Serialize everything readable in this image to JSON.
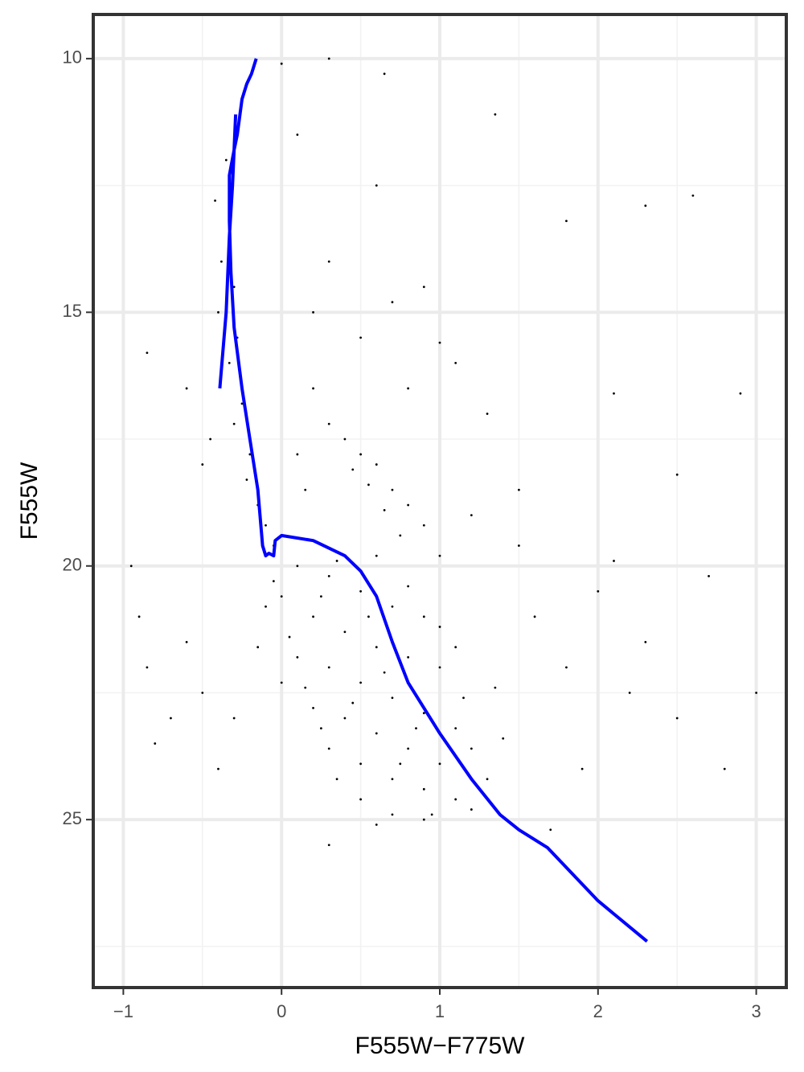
{
  "chart_data": {
    "type": "scatter",
    "x_label": "F555W−F775W",
    "y_label": "F555W",
    "xlim": [
      -1.19,
      3.19
    ],
    "ylim": [
      9.13,
      28.31
    ],
    "y_reversed": true,
    "xticks": [
      {
        "value": -1,
        "label": "−1"
      },
      0,
      1,
      2,
      3
    ],
    "yticks": [
      10,
      15,
      20,
      25
    ],
    "x_minor": [
      -0.5,
      0.5,
      1.5,
      2.5
    ],
    "y_minor": [
      12.5,
      17.5,
      22.5,
      27.5
    ],
    "grid": true,
    "points": {
      "color": "#000000",
      "x": [
        -0.35,
        -0.32,
        -0.38,
        -0.3,
        -0.4,
        -0.28,
        -0.33,
        -0.25,
        -0.3,
        -0.2,
        -0.22,
        -0.15,
        -0.1,
        -0.05,
        -0.45,
        -0.5,
        -0.42,
        -0.26,
        0.3,
        0.4,
        0.5,
        0.6,
        0.7,
        0.8,
        0.9,
        0.55,
        0.45,
        0.65,
        0.75,
        1.0,
        0.2,
        0.5,
        0.8,
        1.1,
        0.3,
        0.9,
        1.3,
        1.5,
        1.2,
        0.1,
        0.15,
        0.1,
        0.3,
        0.5,
        0.7,
        0.9,
        0.2,
        0.4,
        0.6,
        0.8,
        1.0,
        0.1,
        0.3,
        0.5,
        0.7,
        0.9,
        1.1,
        0.2,
        0.4,
        0.6,
        0.8,
        1.0,
        0.3,
        0.5,
        0.7,
        0.9,
        1.1,
        0.5,
        0.7,
        0.9,
        1.2,
        0.0,
        0.05,
        -0.05,
        0.15,
        0.25,
        0.35,
        0.6,
        1.3,
        1.2,
        1.0,
        0.8,
        0.6,
        0.35,
        1.15,
        0.45,
        0.65,
        0.85,
        0.55,
        0.25,
        0.75,
        0.95,
        1.4,
        1.35,
        1.1,
        -0.1,
        -0.15,
        0.0,
        -0.9,
        -0.85,
        -0.95,
        -0.7,
        -0.6,
        -0.5,
        -0.8,
        -0.3,
        -0.4,
        1.6,
        1.8,
        2.0,
        2.2,
        2.5,
        2.8,
        1.9,
        2.3,
        3.0,
        2.7,
        1.7,
        0.3,
        -0.6,
        -0.85,
        2.6,
        2.3,
        0.0,
        0.3,
        0.65,
        1.35,
        0.1,
        0.6,
        1.8,
        2.1,
        2.9,
        2.5,
        1.5,
        2.1,
        0.2,
        0.7,
        1.0
      ],
      "y": [
        12,
        13,
        14,
        14.5,
        15,
        15.5,
        16,
        16.8,
        17.2,
        17.8,
        18.3,
        18.8,
        19.2,
        19.6,
        17.5,
        18,
        12.8,
        11,
        17.2,
        17.5,
        17.8,
        18,
        18.5,
        18.8,
        19.2,
        18.4,
        18.1,
        18.9,
        19.4,
        19.8,
        16.5,
        15.5,
        16.5,
        16,
        14,
        14.5,
        17,
        18.5,
        19,
        17.8,
        18.5,
        20,
        20.2,
        20.5,
        20.8,
        21,
        21,
        21.3,
        21.6,
        21.8,
        22,
        21.8,
        22,
        22.3,
        22.6,
        22.9,
        23.2,
        22.8,
        23,
        23.3,
        23.6,
        23.9,
        23.6,
        23.9,
        24.2,
        24.4,
        24.6,
        24.6,
        24.9,
        25,
        24.8,
        20.6,
        21.4,
        20.3,
        22.4,
        23.2,
        24.2,
        25.1,
        24.2,
        23.6,
        21.2,
        20.4,
        19.8,
        19.9,
        22.6,
        22.7,
        22.1,
        23.2,
        21,
        20.6,
        23.9,
        24.9,
        23.4,
        22.4,
        21.6,
        20.8,
        21.6,
        22.3,
        21,
        22,
        20,
        23,
        21.5,
        22.5,
        23.5,
        23,
        24,
        21,
        22,
        20.5,
        22.5,
        23,
        24,
        24,
        21.5,
        22.5,
        20.2,
        25.2,
        25.5,
        16.5,
        15.8,
        12.7,
        12.9,
        10.1,
        10.0,
        10.3,
        11.1,
        11.5,
        12.5,
        13.2,
        16.6,
        16.6,
        18.2,
        19.6,
        19.9,
        15,
        14.8,
        15.6
      ]
    },
    "line": {
      "color": "#0000ff",
      "x": [
        2.31,
        2.0,
        1.68,
        1.5,
        1.38,
        1.2,
        1.0,
        0.8,
        0.7,
        0.6,
        0.5,
        0.4,
        0.2,
        0.0,
        -0.04,
        -0.05,
        -0.08,
        -0.1,
        -0.12,
        -0.15,
        -0.2,
        -0.25,
        -0.3,
        -0.32,
        -0.33,
        -0.33,
        -0.3,
        -0.28,
        -0.25,
        -0.22,
        -0.19,
        -0.16,
        null,
        -0.29,
        -0.31,
        -0.33,
        -0.35,
        -0.39
      ],
      "y": [
        27.4,
        26.6,
        25.55,
        25.2,
        24.9,
        24.2,
        23.3,
        22.3,
        21.5,
        20.6,
        20.1,
        19.8,
        19.5,
        19.4,
        19.5,
        19.8,
        19.75,
        19.8,
        19.6,
        18.5,
        17.5,
        16.5,
        15.3,
        14.2,
        13.2,
        12.3,
        11.8,
        11.5,
        10.8,
        10.5,
        10.3,
        10.0,
        null,
        11.1,
        12.5,
        13.5,
        15,
        16.5
      ]
    }
  }
}
